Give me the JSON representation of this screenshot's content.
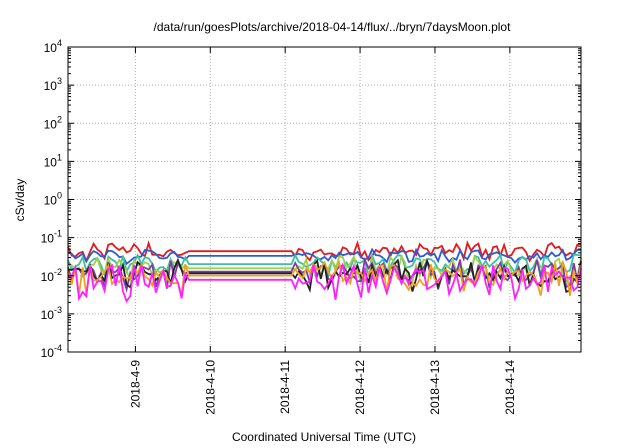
{
  "chart_data": {
    "type": "line",
    "title": "/data/run/goesPlots/archive/2018-04-14/flux/../bryn/7daysMoon.plot",
    "xlabel": "Coordinated Universal Time (UTC)",
    "ylabel": "cSv/day",
    "yscale": "log",
    "ylim": [
      0.0001,
      10000
    ],
    "y_ticks": [
      {
        "value": 0.0001,
        "base": "10",
        "exp": "-4"
      },
      {
        "value": 0.001,
        "base": "10",
        "exp": "-3"
      },
      {
        "value": 0.01,
        "base": "10",
        "exp": "-2"
      },
      {
        "value": 0.1,
        "base": "10",
        "exp": "-1"
      },
      {
        "value": 1,
        "base": "10",
        "exp": "0"
      },
      {
        "value": 10,
        "base": "10",
        "exp": "1"
      },
      {
        "value": 100,
        "base": "10",
        "exp": "2"
      },
      {
        "value": 1000,
        "base": "10",
        "exp": "3"
      },
      {
        "value": 10000,
        "base": "10",
        "exp": "4"
      }
    ],
    "xlim": [
      8.1,
      14.95
    ],
    "x_ticks": [
      {
        "value": 9,
        "label": "2018-4-9"
      },
      {
        "value": 10,
        "label": "2018-4-10"
      },
      {
        "value": 11,
        "label": "2018-4-11"
      },
      {
        "value": 12,
        "label": "2018-4-12"
      },
      {
        "value": 13,
        "label": "2018-4-13"
      },
      {
        "value": 14,
        "label": "2018-4-14"
      }
    ],
    "grid": true,
    "gap": [
      9.7,
      11.1
    ],
    "series": [
      {
        "color": "#e41a1c",
        "level": 0.048,
        "amp": 0.18,
        "seed": 1
      },
      {
        "color": "#2b5bd7",
        "level": 0.036,
        "amp": 0.14,
        "seed": 2
      },
      {
        "color": "#3bbfa0",
        "level": 0.022,
        "amp": 0.22,
        "seed": 3
      },
      {
        "color": "#a0d050",
        "level": 0.017,
        "amp": 0.28,
        "seed": 4
      },
      {
        "color": "#7b3fa0",
        "level": 0.014,
        "amp": 0.3,
        "seed": 5
      },
      {
        "color": "#222222",
        "level": 0.0125,
        "amp": 0.32,
        "seed": 6
      },
      {
        "color": "#f0a020",
        "level": 0.011,
        "amp": 0.33,
        "seed": 7
      },
      {
        "color": "#ff20ff",
        "level": 0.0085,
        "amp": 0.36,
        "seed": 8
      }
    ]
  }
}
